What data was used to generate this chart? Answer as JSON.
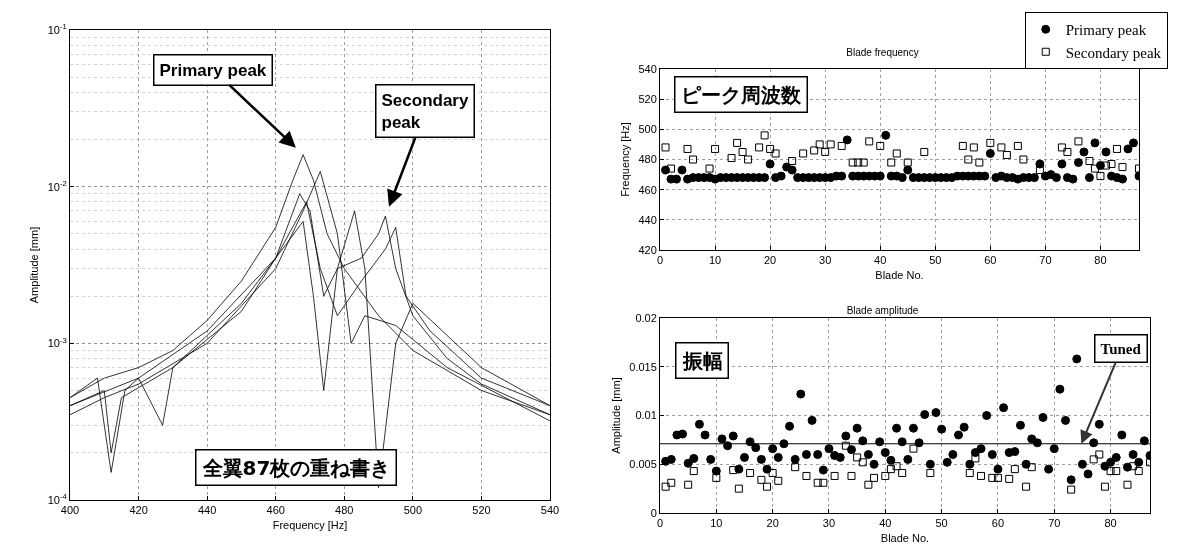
{
  "chart_data": [
    {
      "type": "line",
      "xlabel": "Frequency [Hz]",
      "ylabel": "Amplitude [mm]",
      "log": "y",
      "grid": true,
      "marker": "none",
      "line_style": "solid",
      "xlim": [
        400,
        540
      ],
      "xticks": [
        400,
        420,
        440,
        460,
        480,
        500,
        520,
        540
      ],
      "ylim": [
        0.0001,
        0.1
      ],
      "yticks": [
        {
          "value": 0.0001,
          "label": "10$^{-4}$"
        },
        {
          "value": 0.001,
          "label": "10$^{-3}$"
        },
        {
          "value": 0.01,
          "label": "10$^{-2}$"
        },
        {
          "value": 0.1,
          "label": "10$^{-1}$"
        }
      ],
      "annotations": [
        {
          "text": "Primary peak",
          "x": 468,
          "y": 0.016
        },
        {
          "text": "Secondary\npeak",
          "x": 492,
          "y": 0.0065
        },
        "全翼87枚の重ね書き"
      ],
      "series": [
        {
          "color": "#000000",
          "x": [
            400,
            410,
            420,
            430,
            440,
            450,
            460,
            465,
            468,
            471,
            475,
            480,
            490,
            500,
            520,
            540
          ],
          "values": [
            0.00045,
            0.0006,
            0.0007,
            0.0009,
            0.0014,
            0.0025,
            0.0055,
            0.011,
            0.016,
            0.011,
            0.005,
            0.003,
            0.0015,
            0.0009,
            0.0005,
            0.00035
          ]
        },
        {
          "color": "#000000",
          "x": [
            400,
            410,
            412,
            415,
            430,
            450,
            460,
            467,
            470,
            474,
            478,
            485,
            490,
            492,
            495,
            500,
            510,
            520,
            540
          ],
          "values": [
            0.0004,
            0.0005,
            0.0002,
            0.00045,
            0.0007,
            0.0016,
            0.0035,
            0.009,
            0.007,
            0.002,
            0.003,
            0.0035,
            0.005,
            0.0065,
            0.003,
            0.0015,
            0.0008,
            0.00055,
            0.00035
          ]
        },
        {
          "color": "#000000",
          "x": [
            400,
            410,
            420,
            440,
            460,
            468,
            473,
            478,
            482,
            486,
            495,
            510,
            540
          ],
          "values": [
            0.00035,
            0.00045,
            0.00055,
            0.001,
            0.003,
            0.007,
            0.0125,
            0.005,
            0.001,
            0.0015,
            0.0013,
            0.0007,
            0.00032
          ]
        },
        {
          "color": "#000000",
          "x": [
            400,
            408,
            412,
            416,
            420,
            427,
            430,
            450,
            462,
            468,
            471,
            474,
            478,
            483,
            486,
            490,
            495,
            500,
            520,
            540
          ],
          "values": [
            0.00045,
            0.0006,
            0.00015,
            0.0005,
            0.0006,
            0.0003,
            0.0007,
            0.0018,
            0.004,
            0.006,
            0.002,
            0.0005,
            0.003,
            0.007,
            0.003,
            0.00012,
            0.001,
            0.0018,
            0.0007,
            0.0004
          ]
        },
        {
          "color": "#000000",
          "x": [
            400,
            420,
            440,
            460,
            469,
            473,
            478,
            485,
            492,
            495,
            498,
            505,
            520,
            540
          ],
          "values": [
            0.0004,
            0.0006,
            0.0012,
            0.0035,
            0.008,
            0.003,
            0.0015,
            0.0025,
            0.004,
            0.0055,
            0.002,
            0.0012,
            0.0006,
            0.0004
          ]
        }
      ]
    },
    {
      "type": "scatter",
      "title": "Blade frequency",
      "xlabel": "Blade No.",
      "ylabel": "Frequency [Hz]",
      "grid": true,
      "legend": "top right",
      "xlim": [
        0,
        87
      ],
      "xticks": [
        0,
        10,
        20,
        30,
        40,
        50,
        60,
        70,
        80
      ],
      "ylim": [
        420,
        540
      ],
      "yticks": [
        420,
        440,
        460,
        480,
        500,
        520,
        540
      ],
      "annotations": [
        "ピーク周波数"
      ],
      "x": [
        1,
        2,
        3,
        4,
        5,
        6,
        7,
        8,
        9,
        10,
        11,
        12,
        13,
        14,
        15,
        16,
        17,
        18,
        19,
        20,
        21,
        22,
        23,
        24,
        25,
        26,
        27,
        28,
        29,
        30,
        31,
        32,
        33,
        34,
        35,
        36,
        37,
        38,
        39,
        40,
        41,
        42,
        43,
        44,
        45,
        46,
        47,
        48,
        49,
        50,
        51,
        52,
        53,
        54,
        55,
        56,
        57,
        58,
        59,
        60,
        61,
        62,
        63,
        64,
        65,
        66,
        67,
        68,
        69,
        70,
        71,
        72,
        73,
        74,
        75,
        76,
        77,
        78,
        79,
        80,
        81,
        82,
        83,
        84,
        85,
        86,
        87
      ],
      "series": [
        {
          "name": "Primary peak",
          "color": "#000000",
          "marker": "circle",
          "values": [
            473,
            467,
            467,
            473,
            467,
            468,
            468,
            468,
            468,
            467,
            468,
            468,
            468,
            468,
            468,
            468,
            468,
            468,
            468,
            477,
            468,
            469,
            475,
            473,
            468,
            468,
            468,
            468,
            468,
            468,
            468,
            469,
            469,
            493,
            469,
            469,
            469,
            469,
            469,
            469,
            496,
            469,
            469,
            468,
            473,
            468,
            468,
            468,
            468,
            468,
            468,
            468,
            468,
            469,
            469,
            469,
            469,
            469,
            469,
            484,
            468,
            469,
            468,
            468,
            467,
            468,
            468,
            468,
            477,
            469,
            470,
            468,
            477,
            468,
            467,
            478,
            485,
            468,
            491,
            476,
            485,
            469,
            468,
            467,
            487,
            491,
            469
          ]
        },
        {
          "name": "Secondary peak",
          "color": "#000000",
          "marker": "square",
          "x": [
            1,
            2,
            5,
            6,
            9,
            10,
            13,
            14,
            15,
            16,
            18,
            19,
            20,
            21,
            24,
            26,
            28,
            29,
            30,
            31,
            33,
            35,
            36,
            37,
            38,
            40,
            42,
            43,
            45,
            48,
            55,
            56,
            57,
            58,
            60,
            62,
            63,
            65,
            66,
            69,
            73,
            74,
            76,
            78,
            79,
            80,
            81,
            82,
            83,
            84,
            87
          ],
          "values": [
            488,
            474,
            487,
            480,
            474,
            487,
            481,
            491,
            485,
            480,
            488,
            496,
            487,
            484,
            479,
            484,
            486,
            490,
            485,
            490,
            489,
            478,
            478,
            478,
            492,
            489,
            478,
            484,
            478,
            485,
            489,
            480,
            488,
            478,
            491,
            488,
            483,
            489,
            480,
            473,
            488,
            485,
            492,
            479,
            474,
            469,
            476,
            477,
            487,
            475,
            474
          ]
        }
      ]
    },
    {
      "type": "scatter",
      "title": "Blade amplitude",
      "xlabel": "Blade No.",
      "ylabel": "Amplitude [mm]",
      "grid": true,
      "xlim": [
        0,
        87
      ],
      "xticks": [
        0,
        10,
        20,
        30,
        40,
        50,
        60,
        70,
        80
      ],
      "ylim": [
        0,
        0.02
      ],
      "yticks": [
        0,
        0.005,
        0.01,
        0.015,
        0.02
      ],
      "annotations": [
        "振幅"
      ],
      "ref_lines": [
        {
          "axis": "y",
          "value": 0.0071,
          "label": "Tuned",
          "color": "#000000"
        }
      ],
      "x": [
        1,
        2,
        3,
        4,
        5,
        6,
        7,
        8,
        9,
        10,
        11,
        12,
        13,
        14,
        15,
        16,
        17,
        18,
        19,
        20,
        21,
        22,
        23,
        24,
        25,
        26,
        27,
        28,
        29,
        30,
        31,
        32,
        33,
        34,
        35,
        36,
        37,
        38,
        39,
        40,
        41,
        42,
        43,
        44,
        45,
        46,
        47,
        48,
        49,
        50,
        51,
        52,
        53,
        54,
        55,
        56,
        57,
        58,
        59,
        60,
        61,
        62,
        63,
        64,
        65,
        66,
        67,
        68,
        69,
        70,
        71,
        72,
        73,
        74,
        75,
        76,
        77,
        78,
        79,
        80,
        81,
        82,
        83,
        84,
        85,
        86,
        87
      ],
      "series": [
        {
          "color": "#000000",
          "marker": "circle",
          "values": [
            0.0053,
            0.0055,
            0.008,
            0.0081,
            0.0051,
            0.0056,
            0.0091,
            0.008,
            0.0055,
            0.0043,
            0.0076,
            0.0069,
            0.0079,
            0.0045,
            0.0057,
            0.0073,
            0.0067,
            0.0055,
            0.0045,
            0.0066,
            0.0057,
            0.0071,
            0.0089,
            0.0055,
            0.0122,
            0.006,
            0.0095,
            0.006,
            0.0044,
            0.0066,
            0.0059,
            0.0057,
            0.0079,
            0.0065,
            0.0087,
            0.0074,
            0.006,
            0.005,
            0.0073,
            0.0062,
            0.0054,
            0.0087,
            0.0073,
            0.0055,
            0.0087,
            0.0072,
            0.0101,
            0.005,
            0.0103,
            0.0086,
            0.0052,
            0.006,
            0.008,
            0.0088,
            0.005,
            0.0062,
            0.0066,
            0.01,
            0.006,
            0.0045,
            0.0108,
            0.0062,
            0.0063,
            0.009,
            0.005,
            0.0076,
            0.0072,
            0.0098,
            0.0045,
            0.0066,
            0.0127,
            0.0095,
            0.0034,
            0.0158,
            0.005,
            0.004,
            0.0072,
            0.0091,
            0.0048,
            0.0052,
            0.0057,
            0.008,
            0.0047,
            0.006,
            0.0052,
            0.0074,
            0.0059
          ]
        },
        {
          "color": "#000000",
          "marker": "square",
          "x": [
            1,
            2,
            5,
            6,
            10,
            13,
            14,
            16,
            18,
            19,
            20,
            21,
            24,
            26,
            28,
            29,
            31,
            33,
            34,
            35,
            36,
            37,
            38,
            40,
            41,
            42,
            43,
            45,
            48,
            55,
            56,
            57,
            59,
            60,
            62,
            63,
            65,
            66,
            69,
            73,
            75,
            76,
            77,
            78,
            79,
            80,
            81,
            83,
            84,
            85,
            87
          ],
          "values": [
            0.0027,
            0.0031,
            0.0029,
            0.0043,
            0.0036,
            0.0044,
            0.0025,
            0.0041,
            0.0034,
            0.0027,
            0.0041,
            0.0033,
            0.0047,
            0.0038,
            0.0031,
            0.0031,
            0.0038,
            0.0069,
            0.0038,
            0.0057,
            0.0052,
            0.0029,
            0.0036,
            0.0038,
            0.0045,
            0.0048,
            0.0041,
            0.0066,
            0.0041,
            0.0041,
            0.0056,
            0.0038,
            0.0036,
            0.0036,
            0.0035,
            0.0045,
            0.0027,
            0.0047,
            null,
            0.0024,
            null,
            null,
            0.0055,
            0.006,
            0.0027,
            0.0043,
            0.0043,
            0.0029,
            0.0048,
            0.0043,
            0.0052
          ]
        }
      ]
    }
  ]
}
